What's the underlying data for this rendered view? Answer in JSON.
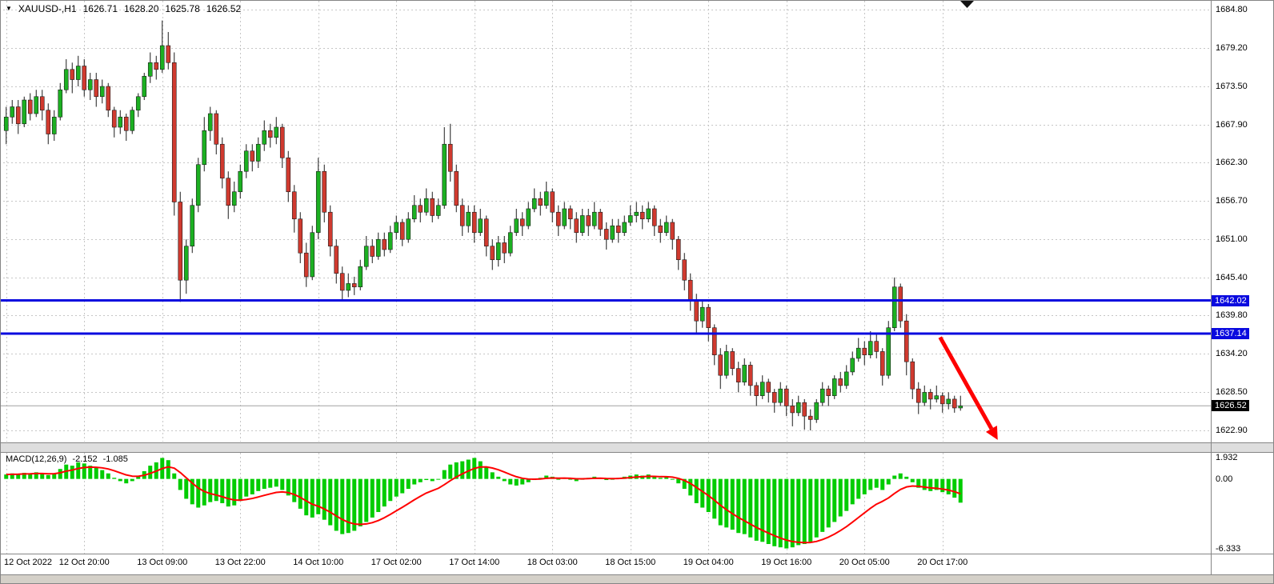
{
  "header": {
    "dropdown_icon": "▼",
    "symbol": "XAUUSD-,H1",
    "open": "1626.71",
    "high": "1628.20",
    "low": "1625.78",
    "close": "1626.52"
  },
  "indicator_header": {
    "label": "MACD(12,26,9)",
    "macd_value": "-2.152",
    "signal_value": "-1.085"
  },
  "colors": {
    "background": "#ffffff",
    "bull": "#1cb022",
    "bear": "#d03a2f",
    "wick": "#1c1c1c",
    "hist": "#00cc00",
    "signal": "#ff0000",
    "level": "#0a0adf",
    "grid": "#c6c6c6",
    "price_line": "#a0a0a0",
    "price_tag_bg": "#000000",
    "tag_text": "#ffffff",
    "frame": "#858585",
    "separator_bg": "#dedede",
    "bottom_strip": "#d4d0c8",
    "arrow": "#fe0000",
    "corner_marker": "#111111"
  },
  "icons": {
    "header_triangle": "black-down-triangle",
    "corner_triangle": "black-down-triangle"
  },
  "chart_data": {
    "type": "candlestick",
    "symbol": "XAUUSD-",
    "timeframe": "H1",
    "title": "XAUUSD-,H1",
    "ohlc_display": {
      "open": "1626.71",
      "high": "1628.20",
      "low": "1625.78",
      "close": "1626.52"
    },
    "price_axis": {
      "top": 1684.8,
      "bottom": 1622.9,
      "ticks": [
        "1684.80",
        "1679.20",
        "1673.50",
        "1667.90",
        "1662.30",
        "1656.70",
        "1651.00",
        "1645.40",
        "1639.80",
        "1634.20",
        "1628.50",
        "1622.90"
      ]
    },
    "time_axis": {
      "bars_per_label": 13,
      "labels": [
        "12 Oct 2022",
        "12 Oct 20:00",
        "13 Oct 09:00",
        "13 Oct 22:00",
        "14 Oct 10:00",
        "17 Oct 02:00",
        "17 Oct 14:00",
        "18 Oct 03:00",
        "18 Oct 15:00",
        "19 Oct 04:00",
        "19 Oct 16:00",
        "20 Oct 05:00",
        "20 Oct 17:00"
      ]
    },
    "horizontal_levels": [
      {
        "price": 1642.02,
        "label": "1642.02"
      },
      {
        "price": 1637.14,
        "label": "1637.14"
      }
    ],
    "current_price": {
      "value": 1626.52,
      "label": "1626.52"
    },
    "candles": [
      [
        1667.0,
        1670.5,
        1665.0,
        1669.0
      ],
      [
        1669.0,
        1671.5,
        1668.0,
        1670.5
      ],
      [
        1670.5,
        1671.5,
        1666.5,
        1668.0
      ],
      [
        1668.0,
        1672.0,
        1667.5,
        1671.5
      ],
      [
        1671.5,
        1672.5,
        1668.5,
        1669.5
      ],
      [
        1669.5,
        1673.0,
        1669.0,
        1672.0
      ],
      [
        1672.0,
        1673.0,
        1668.5,
        1670.0
      ],
      [
        1670.0,
        1671.0,
        1665.0,
        1666.5
      ],
      [
        1666.5,
        1670.0,
        1665.5,
        1669.0
      ],
      [
        1669.0,
        1674.0,
        1668.5,
        1673.0
      ],
      [
        1673.0,
        1677.5,
        1672.5,
        1676.0
      ],
      [
        1676.0,
        1677.0,
        1672.5,
        1674.5
      ],
      [
        1674.5,
        1678.0,
        1673.5,
        1676.5
      ],
      [
        1676.5,
        1677.5,
        1672.0,
        1673.0
      ],
      [
        1673.0,
        1675.5,
        1671.5,
        1674.5
      ],
      [
        1674.5,
        1675.5,
        1670.5,
        1672.0
      ],
      [
        1672.0,
        1674.5,
        1671.0,
        1673.5
      ],
      [
        1673.5,
        1674.0,
        1669.0,
        1670.0
      ],
      [
        1670.0,
        1670.5,
        1666.0,
        1667.5
      ],
      [
        1667.5,
        1670.0,
        1666.5,
        1669.0
      ],
      [
        1669.0,
        1669.5,
        1665.5,
        1667.0
      ],
      [
        1667.0,
        1670.5,
        1666.5,
        1670.0
      ],
      [
        1670.0,
        1672.5,
        1669.0,
        1672.0
      ],
      [
        1672.0,
        1675.5,
        1671.5,
        1675.0
      ],
      [
        1675.0,
        1678.5,
        1674.0,
        1677.0
      ],
      [
        1677.0,
        1678.0,
        1674.5,
        1676.0
      ],
      [
        1676.0,
        1683.2,
        1675.5,
        1679.5
      ],
      [
        1679.5,
        1681.5,
        1676.0,
        1677.0
      ],
      [
        1677.0,
        1678.5,
        1654.5,
        1656.5
      ],
      [
        1656.5,
        1658.0,
        1641.8,
        1645.0
      ],
      [
        1645.0,
        1651.0,
        1643.0,
        1650.0
      ],
      [
        1650.0,
        1657.0,
        1649.0,
        1656.0
      ],
      [
        1656.0,
        1663.0,
        1655.0,
        1662.0
      ],
      [
        1662.0,
        1669.0,
        1661.0,
        1667.0
      ],
      [
        1667.0,
        1670.5,
        1665.5,
        1669.5
      ],
      [
        1669.5,
        1670.0,
        1663.5,
        1665.0
      ],
      [
        1665.0,
        1666.0,
        1658.5,
        1660.0
      ],
      [
        1660.0,
        1661.0,
        1654.0,
        1656.0
      ],
      [
        1656.0,
        1659.5,
        1655.0,
        1658.0
      ],
      [
        1658.0,
        1662.0,
        1657.0,
        1661.0
      ],
      [
        1661.0,
        1665.0,
        1660.0,
        1664.0
      ],
      [
        1664.0,
        1665.0,
        1661.0,
        1662.5
      ],
      [
        1662.5,
        1666.0,
        1661.5,
        1665.0
      ],
      [
        1665.0,
        1668.5,
        1664.0,
        1667.0
      ],
      [
        1667.0,
        1668.0,
        1664.5,
        1666.0
      ],
      [
        1666.0,
        1669.0,
        1665.0,
        1667.5
      ],
      [
        1667.5,
        1668.0,
        1661.5,
        1663.0
      ],
      [
        1663.0,
        1664.0,
        1656.5,
        1658.0
      ],
      [
        1658.0,
        1659.0,
        1652.0,
        1654.0
      ],
      [
        1654.0,
        1655.0,
        1647.5,
        1649.0
      ],
      [
        1649.0,
        1650.5,
        1644.0,
        1645.5
      ],
      [
        1645.5,
        1653.0,
        1645.0,
        1652.0
      ],
      [
        1652.0,
        1663.0,
        1651.0,
        1661.0
      ],
      [
        1661.0,
        1662.0,
        1653.5,
        1655.0
      ],
      [
        1655.0,
        1656.0,
        1648.5,
        1650.0
      ],
      [
        1650.0,
        1651.0,
        1644.5,
        1646.0
      ],
      [
        1646.0,
        1647.0,
        1642.2,
        1643.5
      ],
      [
        1643.5,
        1646.0,
        1642.5,
        1644.5
      ],
      [
        1644.5,
        1645.5,
        1642.8,
        1644.0
      ],
      [
        1644.0,
        1648.0,
        1643.5,
        1647.0
      ],
      [
        1647.0,
        1651.5,
        1646.5,
        1650.0
      ],
      [
        1650.0,
        1651.0,
        1647.5,
        1648.5
      ],
      [
        1648.5,
        1652.0,
        1648.0,
        1651.0
      ],
      [
        1651.0,
        1652.0,
        1648.5,
        1649.5
      ],
      [
        1649.5,
        1653.0,
        1649.0,
        1652.0
      ],
      [
        1652.0,
        1654.5,
        1651.0,
        1653.5
      ],
      [
        1653.5,
        1654.0,
        1650.0,
        1651.0
      ],
      [
        1651.0,
        1655.0,
        1650.5,
        1654.0
      ],
      [
        1654.0,
        1657.5,
        1653.5,
        1656.0
      ],
      [
        1656.0,
        1657.0,
        1653.5,
        1655.0
      ],
      [
        1655.0,
        1658.5,
        1654.5,
        1657.0
      ],
      [
        1657.0,
        1658.0,
        1653.5,
        1654.5
      ],
      [
        1654.5,
        1657.0,
        1654.0,
        1656.0
      ],
      [
        1656.0,
        1667.5,
        1655.5,
        1665.0
      ],
      [
        1665.0,
        1668.0,
        1659.5,
        1661.0
      ],
      [
        1661.0,
        1662.0,
        1655.0,
        1656.0
      ],
      [
        1656.0,
        1657.0,
        1651.5,
        1653.0
      ],
      [
        1653.0,
        1656.0,
        1652.0,
        1655.0
      ],
      [
        1655.0,
        1656.0,
        1650.5,
        1652.0
      ],
      [
        1652.0,
        1655.5,
        1651.5,
        1654.0
      ],
      [
        1654.0,
        1654.5,
        1648.5,
        1650.0
      ],
      [
        1650.0,
        1651.0,
        1646.5,
        1648.0
      ],
      [
        1648.0,
        1651.5,
        1647.0,
        1650.5
      ],
      [
        1650.5,
        1651.5,
        1647.5,
        1649.0
      ],
      [
        1649.0,
        1653.0,
        1648.5,
        1652.0
      ],
      [
        1652.0,
        1655.5,
        1651.5,
        1654.0
      ],
      [
        1654.0,
        1655.0,
        1651.5,
        1653.0
      ],
      [
        1653.0,
        1656.5,
        1652.5,
        1655.5
      ],
      [
        1655.5,
        1658.5,
        1655.0,
        1657.0
      ],
      [
        1657.0,
        1658.0,
        1654.5,
        1656.0
      ],
      [
        1656.0,
        1659.5,
        1655.5,
        1658.0
      ],
      [
        1658.0,
        1658.5,
        1653.5,
        1655.0
      ],
      [
        1655.0,
        1656.0,
        1651.5,
        1653.0
      ],
      [
        1653.0,
        1656.5,
        1652.5,
        1655.5
      ],
      [
        1655.5,
        1656.0,
        1652.5,
        1654.0
      ],
      [
        1654.0,
        1655.0,
        1650.5,
        1652.0
      ],
      [
        1652.0,
        1655.5,
        1651.5,
        1654.5
      ],
      [
        1654.5,
        1655.5,
        1651.5,
        1653.0
      ],
      [
        1653.0,
        1656.5,
        1652.5,
        1655.0
      ],
      [
        1655.0,
        1655.5,
        1651.5,
        1652.5
      ],
      [
        1652.5,
        1653.5,
        1649.5,
        1651.0
      ],
      [
        1651.0,
        1654.0,
        1650.5,
        1653.0
      ],
      [
        1653.0,
        1654.0,
        1650.5,
        1652.0
      ],
      [
        1652.0,
        1654.5,
        1651.5,
        1653.5
      ],
      [
        1653.5,
        1656.0,
        1653.0,
        1654.5
      ],
      [
        1654.5,
        1656.5,
        1653.5,
        1655.0
      ],
      [
        1655.0,
        1656.0,
        1652.5,
        1654.0
      ],
      [
        1654.0,
        1656.5,
        1653.5,
        1655.5
      ],
      [
        1655.5,
        1656.0,
        1651.5,
        1653.0
      ],
      [
        1653.0,
        1654.0,
        1650.5,
        1652.0
      ],
      [
        1652.0,
        1654.5,
        1651.5,
        1653.5
      ],
      [
        1653.5,
        1654.0,
        1649.5,
        1651.0
      ],
      [
        1651.0,
        1651.5,
        1646.5,
        1648.0
      ],
      [
        1648.0,
        1649.0,
        1643.5,
        1645.0
      ],
      [
        1645.0,
        1646.0,
        1640.5,
        1642.0
      ],
      [
        1642.0,
        1643.0,
        1637.0,
        1639.0
      ],
      [
        1639.0,
        1642.0,
        1638.0,
        1641.0
      ],
      [
        1641.0,
        1641.5,
        1636.0,
        1638.0
      ],
      [
        1638.0,
        1638.5,
        1632.5,
        1634.0
      ],
      [
        1634.0,
        1635.0,
        1629.0,
        1631.0
      ],
      [
        1631.0,
        1635.5,
        1630.5,
        1634.5
      ],
      [
        1634.5,
        1635.0,
        1631.0,
        1632.0
      ],
      [
        1632.0,
        1633.0,
        1628.5,
        1630.0
      ],
      [
        1630.0,
        1633.5,
        1629.5,
        1632.5
      ],
      [
        1632.5,
        1633.0,
        1628.0,
        1629.5
      ],
      [
        1629.5,
        1630.0,
        1626.5,
        1628.0
      ],
      [
        1628.0,
        1631.0,
        1627.5,
        1630.0
      ],
      [
        1630.0,
        1630.5,
        1627.0,
        1628.5
      ],
      [
        1628.5,
        1629.0,
        1625.5,
        1627.0
      ],
      [
        1627.0,
        1630.0,
        1626.5,
        1629.0
      ],
      [
        1629.0,
        1629.5,
        1625.0,
        1626.5
      ],
      [
        1626.5,
        1627.5,
        1623.5,
        1625.5
      ],
      [
        1625.5,
        1628.0,
        1625.0,
        1627.0
      ],
      [
        1627.0,
        1627.5,
        1623.0,
        1625.0
      ],
      [
        1625.0,
        1626.0,
        1622.9,
        1624.5
      ],
      [
        1624.5,
        1627.5,
        1624.0,
        1627.0
      ],
      [
        1627.0,
        1630.0,
        1626.5,
        1629.0
      ],
      [
        1629.0,
        1629.5,
        1626.5,
        1628.0
      ],
      [
        1628.0,
        1631.0,
        1627.5,
        1630.5
      ],
      [
        1630.5,
        1631.5,
        1628.5,
        1629.5
      ],
      [
        1629.5,
        1632.5,
        1629.0,
        1631.5
      ],
      [
        1631.5,
        1634.5,
        1631.0,
        1633.5
      ],
      [
        1633.5,
        1636.5,
        1633.0,
        1635.0
      ],
      [
        1635.0,
        1636.0,
        1632.5,
        1634.0
      ],
      [
        1634.0,
        1637.5,
        1633.5,
        1636.0
      ],
      [
        1636.0,
        1637.0,
        1633.5,
        1634.5
      ],
      [
        1634.5,
        1635.0,
        1629.5,
        1631.0
      ],
      [
        1631.0,
        1639.0,
        1630.5,
        1638.0
      ],
      [
        1638.0,
        1645.4,
        1637.5,
        1644.0
      ],
      [
        1644.0,
        1644.5,
        1638.0,
        1639.0
      ],
      [
        1639.0,
        1640.0,
        1631.0,
        1633.0
      ],
      [
        1633.0,
        1633.5,
        1627.5,
        1629.0
      ],
      [
        1629.0,
        1630.0,
        1625.3,
        1627.0
      ],
      [
        1627.0,
        1629.5,
        1626.5,
        1628.5
      ],
      [
        1628.5,
        1629.0,
        1626.0,
        1627.5
      ],
      [
        1627.5,
        1629.5,
        1627.0,
        1628.0
      ],
      [
        1628.0,
        1628.5,
        1625.5,
        1626.8
      ],
      [
        1626.8,
        1628.5,
        1626.0,
        1627.5
      ],
      [
        1627.5,
        1628.0,
        1625.5,
        1626.2
      ],
      [
        1626.2,
        1628.0,
        1625.8,
        1626.5
      ]
    ],
    "indicator": {
      "name": "MACD(12,26,9)",
      "values_display": [
        "-2.152",
        "-1.085"
      ],
      "signal_period": 9,
      "axis": {
        "top": 1.932,
        "bottom": -6.333,
        "ticks": [
          "1.932",
          "0.00",
          "-6.333"
        ]
      },
      "histogram": [
        0.4,
        0.5,
        0.45,
        0.55,
        0.5,
        0.6,
        0.5,
        0.35,
        0.5,
        0.9,
        1.3,
        1.2,
        1.5,
        1.4,
        1.2,
        1.0,
        0.8,
        0.5,
        0.1,
        -0.2,
        -0.4,
        -0.2,
        0.2,
        0.7,
        1.2,
        1.5,
        1.9,
        1.7,
        0.5,
        -1.0,
        -1.8,
        -2.3,
        -2.6,
        -2.4,
        -2.1,
        -2.0,
        -2.2,
        -2.5,
        -2.4,
        -2.0,
        -1.6,
        -1.4,
        -1.1,
        -0.9,
        -0.8,
        -0.7,
        -1.0,
        -1.5,
        -2.1,
        -2.7,
        -3.3,
        -3.5,
        -3.2,
        -3.7,
        -4.2,
        -4.7,
        -5.0,
        -4.9,
        -4.7,
        -4.3,
        -3.9,
        -3.5,
        -3.0,
        -2.5,
        -2.0,
        -1.6,
        -1.3,
        -0.9,
        -0.5,
        -0.3,
        -0.1,
        -0.2,
        0.0,
        0.8,
        1.3,
        1.5,
        1.6,
        1.75,
        1.9,
        1.6,
        1.1,
        0.6,
        0.2,
        -0.2,
        -0.5,
        -0.6,
        -0.5,
        -0.3,
        -0.1,
        0.1,
        0.3,
        0.2,
        0.0,
        0.1,
        0.0,
        -0.2,
        0.0,
        0.1,
        0.2,
        0.1,
        -0.1,
        0.0,
        0.1,
        0.2,
        0.3,
        0.4,
        0.3,
        0.4,
        0.2,
        0.1,
        0.2,
        0.0,
        -0.4,
        -0.9,
        -1.5,
        -2.2,
        -2.6,
        -3.0,
        -3.6,
        -4.2,
        -4.4,
        -4.6,
        -4.9,
        -5.0,
        -5.3,
        -5.6,
        -5.7,
        -5.9,
        -6.1,
        -6.2,
        -6.3,
        -6.2,
        -6.0,
        -5.9,
        -5.7,
        -5.3,
        -4.8,
        -4.4,
        -3.9,
        -3.4,
        -2.9,
        -2.3,
        -1.8,
        -1.4,
        -1.0,
        -0.8,
        -1.0,
        -0.5,
        0.3,
        0.5,
        0.2,
        -0.3,
        -0.8,
        -1.0,
        -1.1,
        -1.0,
        -1.2,
        -1.4,
        -1.7,
        -2.152
      ]
    },
    "annotations": {
      "trend_arrow": {
        "from_bar": 155.6,
        "from_price": 1636.6,
        "to_bar": 165.2,
        "to_price": 1621.5
      }
    }
  }
}
